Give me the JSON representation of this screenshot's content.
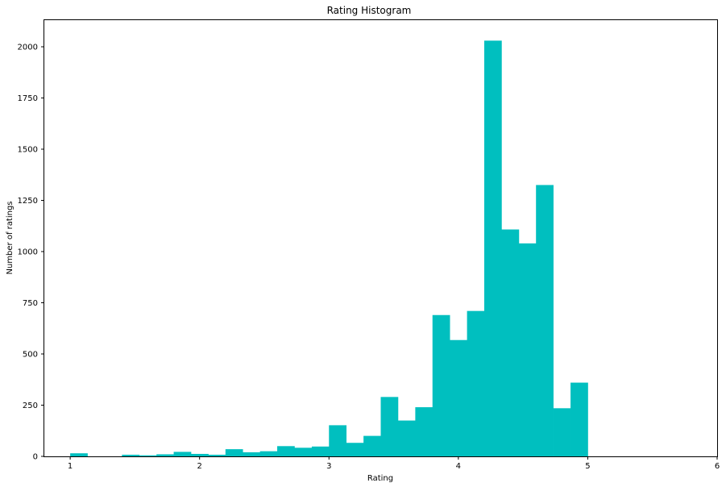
{
  "chart_data": {
    "type": "bar",
    "title": "Rating Histogram",
    "xlabel": "Rating",
    "ylabel": "Number of ratings",
    "xlim": [
      0.8,
      6.0
    ],
    "ylim": [
      0,
      2130
    ],
    "xticks": [
      1,
      2,
      3,
      4,
      5,
      6
    ],
    "yticks": [
      0,
      250,
      500,
      750,
      1000,
      1250,
      1500,
      1750,
      2000
    ],
    "bar_color": "#00bfbf",
    "grid": false,
    "bins": [
      {
        "x0": 1.0,
        "x1": 1.133,
        "value": 15
      },
      {
        "x0": 1.133,
        "x1": 1.267,
        "value": 0
      },
      {
        "x0": 1.267,
        "x1": 1.4,
        "value": 0
      },
      {
        "x0": 1.4,
        "x1": 1.533,
        "value": 8
      },
      {
        "x0": 1.533,
        "x1": 1.667,
        "value": 5
      },
      {
        "x0": 1.667,
        "x1": 1.8,
        "value": 10
      },
      {
        "x0": 1.8,
        "x1": 1.933,
        "value": 22
      },
      {
        "x0": 1.933,
        "x1": 2.067,
        "value": 12
      },
      {
        "x0": 2.067,
        "x1": 2.2,
        "value": 8
      },
      {
        "x0": 2.2,
        "x1": 2.333,
        "value": 35
      },
      {
        "x0": 2.333,
        "x1": 2.467,
        "value": 20
      },
      {
        "x0": 2.467,
        "x1": 2.6,
        "value": 25
      },
      {
        "x0": 2.6,
        "x1": 2.733,
        "value": 50
      },
      {
        "x0": 2.733,
        "x1": 2.867,
        "value": 42
      },
      {
        "x0": 2.867,
        "x1": 3.0,
        "value": 48
      },
      {
        "x0": 3.0,
        "x1": 3.133,
        "value": 152
      },
      {
        "x0": 3.133,
        "x1": 3.267,
        "value": 66
      },
      {
        "x0": 3.267,
        "x1": 3.4,
        "value": 100
      },
      {
        "x0": 3.4,
        "x1": 3.533,
        "value": 290
      },
      {
        "x0": 3.533,
        "x1": 3.667,
        "value": 175
      },
      {
        "x0": 3.667,
        "x1": 3.8,
        "value": 240
      },
      {
        "x0": 3.8,
        "x1": 3.933,
        "value": 690
      },
      {
        "x0": 3.933,
        "x1": 4.067,
        "value": 568
      },
      {
        "x0": 4.067,
        "x1": 4.2,
        "value": 710
      },
      {
        "x0": 4.2,
        "x1": 4.333,
        "value": 2030
      },
      {
        "x0": 4.333,
        "x1": 4.467,
        "value": 1108
      },
      {
        "x0": 4.467,
        "x1": 4.6,
        "value": 1040
      },
      {
        "x0": 4.6,
        "x1": 4.733,
        "value": 1325
      },
      {
        "x0": 4.733,
        "x1": 4.867,
        "value": 235
      },
      {
        "x0": 4.867,
        "x1": 5.0,
        "value": 360
      }
    ]
  }
}
